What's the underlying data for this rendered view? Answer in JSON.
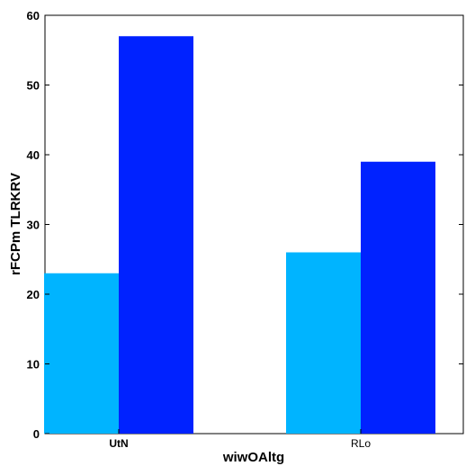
{
  "chart_data": {
    "type": "bar",
    "title": "",
    "xlabel": "wiwOAltg",
    "ylabel": "rFCPm TLRKRV",
    "categories": [
      "UtN",
      "RLo"
    ],
    "category_bold": [
      true,
      false
    ],
    "series": [
      {
        "values": [
          23,
          26
        ],
        "color": "#00b4ff"
      },
      {
        "values": [
          57,
          39
        ],
        "color": "#0022ff"
      }
    ],
    "ylim": [
      0,
      60
    ],
    "yticks": [
      0,
      10,
      20,
      30,
      40,
      50,
      60
    ],
    "grid": false,
    "legend": "none"
  }
}
